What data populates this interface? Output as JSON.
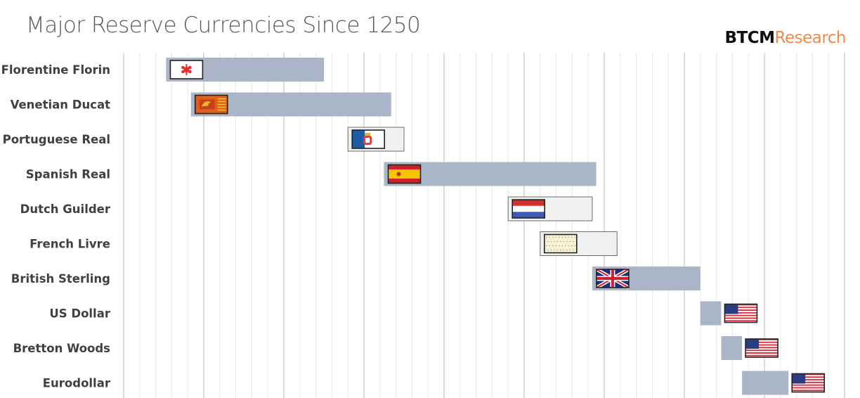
{
  "chart_data": {
    "type": "gantt",
    "title": "Major Reserve Currencies Since 1250",
    "brand": {
      "primary": "BTCM",
      "secondary": "Research"
    },
    "xlabel": "",
    "ylabel": "",
    "xlim": [
      1200,
      2100
    ],
    "grid": {
      "minor_step_years": 20,
      "major_step_years": 100
    },
    "colors": {
      "bar_fill": "#aab5c8",
      "bar_outline_fill": "#f0f0f0",
      "bar_outline_stroke": "#6b6b6b",
      "grid_minor": "#e6e6e6",
      "grid_major": "#cfcfcf"
    },
    "series": [
      {
        "name": "Florentine Florin",
        "start": 1253,
        "end": 1450,
        "style": "filled",
        "flag": "florence",
        "flag_pos": "inside"
      },
      {
        "name": "Venetian Ducat",
        "start": 1284,
        "end": 1534,
        "style": "filled",
        "flag": "venice",
        "flag_pos": "inside"
      },
      {
        "name": "Portuguese Real",
        "start": 1480,
        "end": 1550,
        "style": "outline",
        "flag": "portugal",
        "flag_pos": "inside"
      },
      {
        "name": "Spanish Real",
        "start": 1525,
        "end": 1790,
        "style": "filled",
        "flag": "spain",
        "flag_pos": "inside"
      },
      {
        "name": "Dutch Guilder",
        "start": 1680,
        "end": 1785,
        "style": "outline",
        "flag": "netherlands",
        "flag_pos": "inside"
      },
      {
        "name": "French Livre",
        "start": 1720,
        "end": 1816,
        "style": "outline",
        "flag": "france",
        "flag_pos": "inside"
      },
      {
        "name": "British Sterling",
        "start": 1785,
        "end": 1920,
        "style": "filled",
        "flag": "uk",
        "flag_pos": "inside"
      },
      {
        "name": "US Dollar",
        "start": 1920,
        "end": 1946,
        "style": "filled",
        "flag": "us",
        "flag_pos": "after"
      },
      {
        "name": "Bretton Woods",
        "start": 1946,
        "end": 1972,
        "style": "filled",
        "flag": "us",
        "flag_pos": "after"
      },
      {
        "name": "Eurodollar",
        "start": 1972,
        "end": 2030,
        "style": "filled",
        "flag": "us",
        "flag_pos": "after"
      }
    ]
  }
}
